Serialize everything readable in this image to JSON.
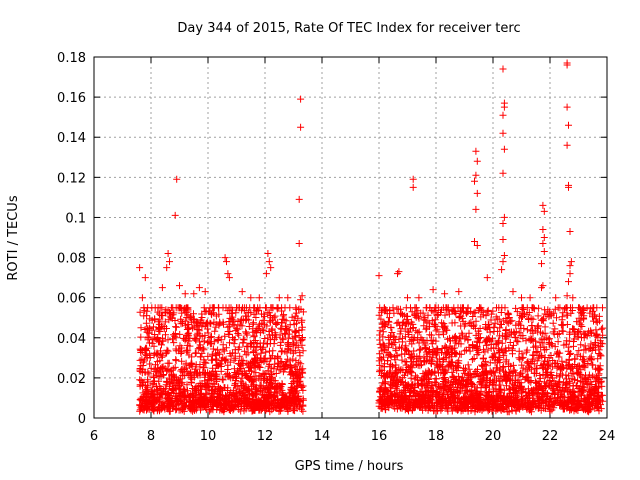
{
  "chart_data": {
    "type": "scatter",
    "title": "Day 344 of 2015, Rate Of TEC Index for receiver terc",
    "xlabel": "GPS time / hours",
    "ylabel": "ROTI / TECUs",
    "xlim": [
      6,
      24
    ],
    "ylim": [
      0,
      0.18
    ],
    "xticks": [
      6,
      8,
      10,
      12,
      14,
      16,
      18,
      20,
      22,
      24
    ],
    "yticks": [
      0,
      0.02,
      0.04,
      0.06,
      0.08,
      0.1,
      0.12,
      0.14,
      0.16,
      0.18
    ],
    "xtick_labels": [
      "6",
      "8",
      "10",
      "12",
      "14",
      "16",
      "18",
      "20",
      "22",
      "24"
    ],
    "ytick_labels": [
      "0",
      "0.02",
      "0.04",
      "0.06",
      "0.08",
      "0.1",
      "0.12",
      "0.14",
      "0.16",
      "0.18"
    ],
    "grid": true,
    "marker": "plus",
    "series_color": "#ff0000",
    "points": [
      [
        7.6,
        0.075
      ],
      [
        7.7,
        0.06
      ],
      [
        7.8,
        0.07
      ],
      [
        7.65,
        0.045
      ],
      [
        7.75,
        0.055
      ],
      [
        8.6,
        0.082
      ],
      [
        8.65,
        0.078
      ],
      [
        8.55,
        0.075
      ],
      [
        8.9,
        0.119
      ],
      [
        8.85,
        0.101
      ],
      [
        8.4,
        0.065
      ],
      [
        9.0,
        0.066
      ],
      [
        9.2,
        0.062
      ],
      [
        9.5,
        0.062
      ],
      [
        9.7,
        0.065
      ],
      [
        9.9,
        0.063
      ],
      [
        10.2,
        0.055
      ],
      [
        10.6,
        0.08
      ],
      [
        10.65,
        0.078
      ],
      [
        10.7,
        0.072
      ],
      [
        10.75,
        0.07
      ],
      [
        11.2,
        0.063
      ],
      [
        11.5,
        0.06
      ],
      [
        11.8,
        0.06
      ],
      [
        12.1,
        0.082
      ],
      [
        12.15,
        0.078
      ],
      [
        12.2,
        0.075
      ],
      [
        12.05,
        0.072
      ],
      [
        12.5,
        0.06
      ],
      [
        12.8,
        0.06
      ],
      [
        13.25,
        0.159
      ],
      [
        13.25,
        0.145
      ],
      [
        13.2,
        0.109
      ],
      [
        13.2,
        0.087
      ],
      [
        13.3,
        0.061
      ],
      [
        13.25,
        0.059
      ],
      [
        16.0,
        0.071
      ],
      [
        16.7,
        0.073
      ],
      [
        16.65,
        0.072
      ],
      [
        17.2,
        0.119
      ],
      [
        17.2,
        0.115
      ],
      [
        17.0,
        0.06
      ],
      [
        17.4,
        0.06
      ],
      [
        17.9,
        0.064
      ],
      [
        18.3,
        0.062
      ],
      [
        18.8,
        0.063
      ],
      [
        19.4,
        0.133
      ],
      [
        19.45,
        0.128
      ],
      [
        19.4,
        0.121
      ],
      [
        19.35,
        0.118
      ],
      [
        19.45,
        0.112
      ],
      [
        19.4,
        0.104
      ],
      [
        19.35,
        0.088
      ],
      [
        19.45,
        0.086
      ],
      [
        19.8,
        0.07
      ],
      [
        20.35,
        0.174
      ],
      [
        20.4,
        0.157
      ],
      [
        20.4,
        0.155
      ],
      [
        20.35,
        0.151
      ],
      [
        20.35,
        0.142
      ],
      [
        20.4,
        0.134
      ],
      [
        20.35,
        0.122
      ],
      [
        20.4,
        0.1
      ],
      [
        20.35,
        0.097
      ],
      [
        20.35,
        0.089
      ],
      [
        20.4,
        0.081
      ],
      [
        20.35,
        0.078
      ],
      [
        20.3,
        0.074
      ],
      [
        20.7,
        0.063
      ],
      [
        21.0,
        0.06
      ],
      [
        21.3,
        0.06
      ],
      [
        21.75,
        0.106
      ],
      [
        21.8,
        0.103
      ],
      [
        21.75,
        0.094
      ],
      [
        21.8,
        0.09
      ],
      [
        21.75,
        0.087
      ],
      [
        21.8,
        0.083
      ],
      [
        21.7,
        0.077
      ],
      [
        21.75,
        0.066
      ],
      [
        21.7,
        0.065
      ],
      [
        22.2,
        0.06
      ],
      [
        22.6,
        0.177
      ],
      [
        22.6,
        0.176
      ],
      [
        22.6,
        0.155
      ],
      [
        22.65,
        0.146
      ],
      [
        22.6,
        0.136
      ],
      [
        22.65,
        0.116
      ],
      [
        22.65,
        0.115
      ],
      [
        22.7,
        0.093
      ],
      [
        22.75,
        0.078
      ],
      [
        22.7,
        0.076
      ],
      [
        22.7,
        0.072
      ],
      [
        22.65,
        0.068
      ],
      [
        22.6,
        0.061
      ],
      [
        22.8,
        0.06
      ],
      [
        23.2,
        0.04
      ],
      [
        23.5,
        0.035
      ]
    ],
    "clusters": [
      {
        "x_start": 7.6,
        "x_end": 13.35,
        "y_min": 0.003,
        "y_max": 0.055,
        "count": 1800
      },
      {
        "x_start": 16.0,
        "x_end": 23.85,
        "y_min": 0.003,
        "y_max": 0.055,
        "count": 2400
      }
    ]
  }
}
